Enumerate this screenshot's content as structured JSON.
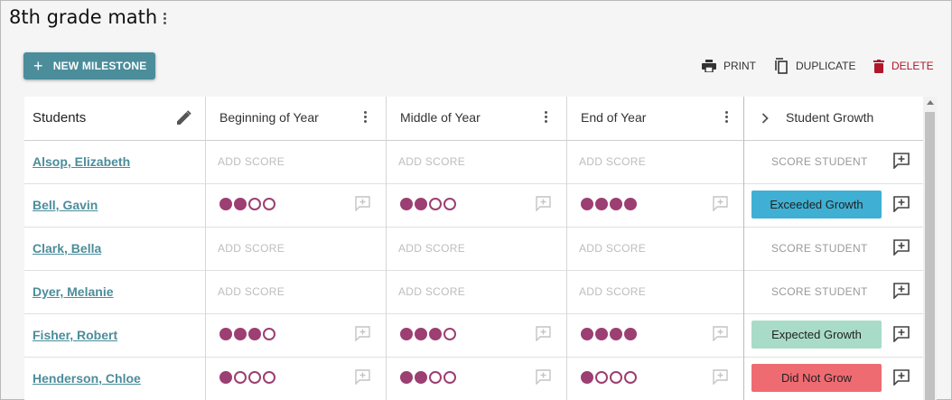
{
  "page": {
    "title": "8th grade math"
  },
  "toolbar": {
    "new_milestone": "NEW MILESTONE",
    "print": "PRINT",
    "duplicate": "DUPLICATE",
    "delete": "DELETE"
  },
  "table": {
    "columns": {
      "students": "Students",
      "beginning": "Beginning of Year",
      "middle": "Middle of Year",
      "end": "End of Year",
      "growth": "Student Growth"
    },
    "add_score_label": "ADD SCORE",
    "score_student_label": "SCORE STUDENT",
    "rows": [
      {
        "name": "Alsop, Elizabeth",
        "beginning": null,
        "middle": null,
        "end": null,
        "growth": null
      },
      {
        "name": "Bell, Gavin",
        "beginning": 2,
        "middle": 2,
        "end": 4,
        "growth": "Exceeded Growth"
      },
      {
        "name": "Clark, Bella",
        "beginning": null,
        "middle": null,
        "end": null,
        "growth": null
      },
      {
        "name": "Dyer, Melanie",
        "beginning": null,
        "middle": null,
        "end": null,
        "growth": null
      },
      {
        "name": "Fisher, Robert",
        "beginning": 3,
        "middle": 3,
        "end": 4,
        "growth": "Expected Growth"
      },
      {
        "name": "Henderson, Chloe",
        "beginning": 1,
        "middle": 2,
        "end": 1,
        "growth": "Did Not Grow"
      }
    ],
    "max_score": 4,
    "growth_colors": {
      "Exceeded Growth": "#3fb0d3",
      "Expected Growth": "#a8dcc8",
      "Did Not Grow": "#ef6b72"
    }
  },
  "colors": {
    "accent": "#4b8d9b",
    "score": "#9c3f72",
    "delete": "#b0172b"
  }
}
